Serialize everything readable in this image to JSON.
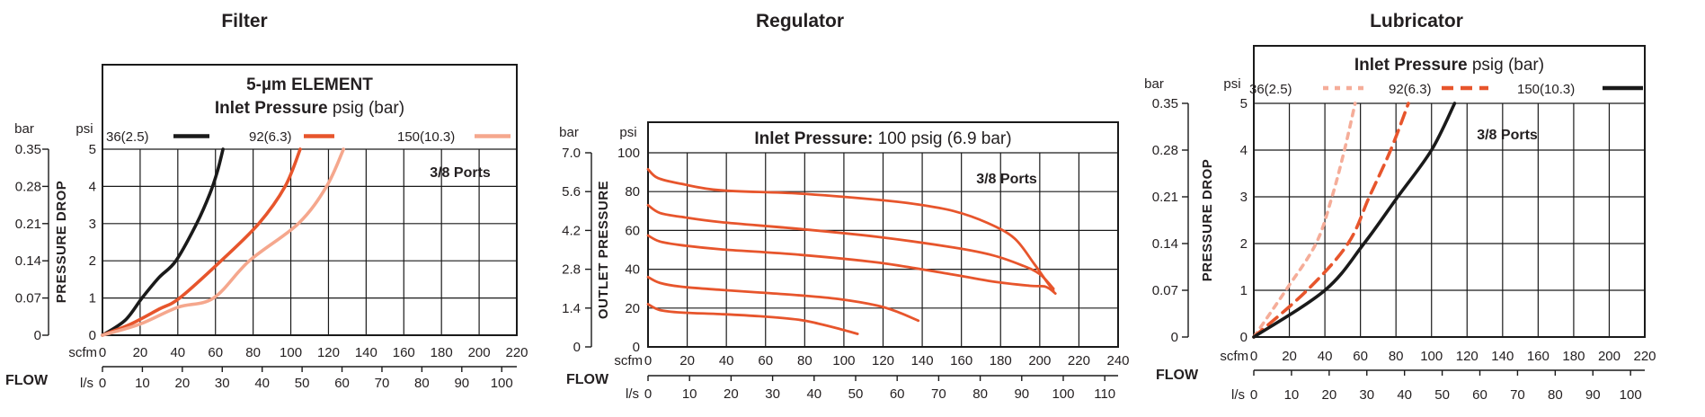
{
  "colors": {
    "black_curve": "#1a1a1a",
    "orange_curve": "#e7552c",
    "salmon_curve": "#f5a78d",
    "pink_curve": "#f5ad99",
    "text": "#231f20",
    "grid": "#1a1a1a",
    "background": "#ffffff"
  },
  "chart_data": [
    {
      "type": "line",
      "title": "Filter",
      "header_lines": [
        [
          {
            "text": "5-µm ELEMENT",
            "bold": true
          }
        ],
        [
          {
            "text": "Inlet Pressure",
            "bold": true
          },
          {
            "text": " psig (bar)",
            "bold": false
          }
        ]
      ],
      "annotation": "3/8 Ports",
      "x_label": "FLOW",
      "y_label": "PRESSURE DROP",
      "legend_position": "top-inside",
      "grid": true,
      "y_left": {
        "unit": "bar",
        "ticks": [
          "0.35",
          "0.28",
          "0.21",
          "0.14",
          "0.07",
          "0"
        ]
      },
      "y_right": {
        "unit": "psi",
        "ticks": [
          "5",
          "4",
          "3",
          "2",
          "1",
          "0"
        ],
        "max": 5
      },
      "x_top": {
        "unit": "scfm",
        "ticks": [
          0,
          20,
          40,
          60,
          80,
          100,
          120,
          140,
          160,
          180,
          200,
          220
        ],
        "max": 220
      },
      "x_bottom": {
        "unit": "l/s",
        "ticks": [
          0,
          10,
          20,
          30,
          40,
          50,
          60,
          70,
          80,
          90,
          100
        ],
        "scfm_per_ls": 2.12
      },
      "series": [
        {
          "name": "36(2.5)",
          "color": "#1a1a1a",
          "style": "solid",
          "points": [
            [
              0,
              0
            ],
            [
              12,
              0.4
            ],
            [
              21,
              1
            ],
            [
              30,
              1.55
            ],
            [
              39,
              2
            ],
            [
              50,
              3
            ],
            [
              57,
              3.8
            ],
            [
              61,
              4.4
            ],
            [
              64,
              5
            ]
          ]
        },
        {
          "name": "92(6.3)",
          "color": "#e7552c",
          "style": "solid",
          "points": [
            [
              0,
              0
            ],
            [
              15,
              0.3
            ],
            [
              30,
              0.7
            ],
            [
              41,
              1
            ],
            [
              63,
              2
            ],
            [
              83,
              3
            ],
            [
              97,
              4
            ],
            [
              105,
              5
            ]
          ]
        },
        {
          "name": "150(10.3)",
          "color": "#f5a78d",
          "style": "solid",
          "points": [
            [
              0,
              0
            ],
            [
              20,
              0.3
            ],
            [
              40,
              0.75
            ],
            [
              59,
              1
            ],
            [
              78,
              2
            ],
            [
              104,
              3
            ],
            [
              119,
              4
            ],
            [
              128,
              5
            ]
          ]
        }
      ]
    },
    {
      "type": "line",
      "title": "Regulator",
      "header_lines": [
        [
          {
            "text": "Inlet Pressure:",
            "bold": true
          },
          {
            "text": " 100 psig (6.9 bar)",
            "bold": false
          }
        ]
      ],
      "annotation": "3/8 Ports",
      "x_label": "FLOW",
      "y_label": "OUTLET PRESSURE",
      "legend_position": "none",
      "grid": true,
      "y_left": {
        "unit": "bar",
        "ticks": [
          "7.0",
          "5.6",
          "4.2",
          "2.8",
          "1.4",
          "0"
        ]
      },
      "y_right": {
        "unit": "psi",
        "ticks": [
          "100",
          "80",
          "60",
          "40",
          "20",
          "0"
        ],
        "max": 100
      },
      "x_top": {
        "unit": "scfm",
        "ticks": [
          0,
          20,
          40,
          60,
          80,
          100,
          120,
          140,
          160,
          180,
          200,
          220,
          240
        ],
        "max": 240
      },
      "x_bottom": {
        "unit": "l/s",
        "ticks": [
          0,
          10,
          20,
          30,
          40,
          50,
          60,
          70,
          80,
          90,
          100,
          110
        ],
        "scfm_per_ls": 2.12
      },
      "series": [
        {
          "name": "curve-1",
          "color": "#e7552c",
          "style": "solid",
          "points": [
            [
              0,
              91.5
            ],
            [
              5,
              87
            ],
            [
              17,
              84
            ],
            [
              37,
              80.7
            ],
            [
              77,
              79
            ],
            [
              117,
              75.8
            ],
            [
              137,
              73.5
            ],
            [
              156,
              70
            ],
            [
              173,
              64
            ],
            [
              187,
              56
            ],
            [
              197,
              43
            ],
            [
              204,
              33
            ],
            [
              207,
              29
            ]
          ]
        },
        {
          "name": "curve-2",
          "color": "#e7552c",
          "style": "solid",
          "points": [
            [
              0,
              73
            ],
            [
              6,
              69
            ],
            [
              17,
              67
            ],
            [
              37,
              64.3
            ],
            [
              77,
              60.8
            ],
            [
              117,
              56.7
            ],
            [
              156,
              51.2
            ],
            [
              176,
              47.2
            ],
            [
              191,
              42
            ],
            [
              200,
              37.5
            ],
            [
              207,
              30
            ]
          ]
        },
        {
          "name": "curve-3",
          "color": "#e7552c",
          "style": "solid",
          "points": [
            [
              0,
              57.4
            ],
            [
              6,
              54.3
            ],
            [
              17,
              52.4
            ],
            [
              37,
              50.3
            ],
            [
              77,
              47.5
            ],
            [
              117,
              43.5
            ],
            [
              156,
              37.2
            ],
            [
              176,
              33.7
            ],
            [
              195,
              31.5
            ],
            [
              203,
              31
            ],
            [
              208,
              27.5
            ]
          ]
        },
        {
          "name": "curve-4",
          "color": "#e7552c",
          "style": "solid",
          "points": [
            [
              0,
              36
            ],
            [
              6,
              33
            ],
            [
              17,
              31
            ],
            [
              37,
              29.4
            ],
            [
              57,
              28
            ],
            [
              77,
              26.6
            ],
            [
              97,
              24.7
            ],
            [
              117,
              21.3
            ],
            [
              128,
              17.8
            ],
            [
              138,
              13.5
            ]
          ]
        },
        {
          "name": "curve-5",
          "color": "#e7552c",
          "style": "solid",
          "points": [
            [
              0,
              22
            ],
            [
              6,
              19
            ],
            [
              17,
              17.7
            ],
            [
              37,
              16.9
            ],
            [
              57,
              15.8
            ],
            [
              77,
              14
            ],
            [
              87,
              12
            ],
            [
              97,
              9.5
            ],
            [
              107,
              6.7
            ]
          ]
        }
      ]
    },
    {
      "type": "line",
      "title": "Lubricator",
      "header_lines": [
        [
          {
            "text": "Inlet Pressure",
            "bold": true
          },
          {
            "text": " psig (bar)",
            "bold": false
          }
        ]
      ],
      "annotation": "3/8 Ports",
      "x_label": "FLOW",
      "y_label": "PRESSURE DROP",
      "legend_position": "top-inside",
      "grid": true,
      "y_left": {
        "unit": "bar",
        "ticks": [
          "0.35",
          "0.28",
          "0.21",
          "0.14",
          "0.07",
          "0"
        ]
      },
      "y_right": {
        "unit": "psi",
        "ticks": [
          "5",
          "4",
          "3",
          "2",
          "1",
          "0"
        ],
        "max": 5
      },
      "x_top": {
        "unit": "scfm",
        "ticks": [
          0,
          20,
          40,
          60,
          80,
          100,
          120,
          140,
          160,
          180,
          200,
          220
        ],
        "max": 220
      },
      "x_bottom": {
        "unit": "l/s",
        "ticks": [
          0,
          10,
          20,
          30,
          40,
          50,
          60,
          70,
          80,
          90,
          100
        ],
        "scfm_per_ls": 2.12
      },
      "series": [
        {
          "name": "36(2.5)",
          "color": "#f5ad99",
          "style": "dotted",
          "points": [
            [
              0,
              0
            ],
            [
              18,
              1
            ],
            [
              35,
              2
            ],
            [
              44,
              3
            ],
            [
              51,
              4
            ],
            [
              57,
              5
            ]
          ]
        },
        {
          "name": "92(6.3)",
          "color": "#e7552c",
          "style": "dashed",
          "points": [
            [
              0,
              0
            ],
            [
              30,
              1
            ],
            [
              53,
              2
            ],
            [
              65,
              3
            ],
            [
              77,
              4
            ],
            [
              87,
              5
            ]
          ]
        },
        {
          "name": "150(10.3)",
          "color": "#1a1a1a",
          "style": "solid",
          "points": [
            [
              0,
              0
            ],
            [
              40,
              1
            ],
            [
              62,
              2
            ],
            [
              81,
              3
            ],
            [
              100,
              4
            ],
            [
              113,
              5
            ]
          ]
        }
      ]
    }
  ]
}
